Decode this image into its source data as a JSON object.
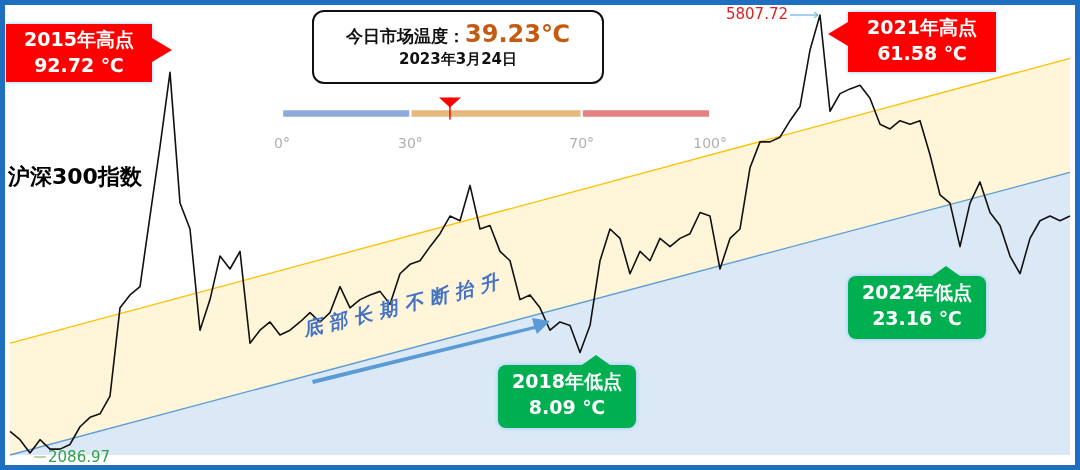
{
  "chart_data": [
    {
      "type": "line",
      "tick_labels": false,
      "categories": [
        null,
        null,
        null,
        null,
        null,
        null,
        null,
        null,
        null,
        null,
        null,
        null,
        null,
        null,
        null,
        null,
        null,
        null,
        null,
        null,
        null,
        null,
        null,
        null,
        null,
        null,
        null,
        null,
        null,
        null,
        null,
        null,
        null,
        null,
        null,
        null,
        null,
        null,
        null,
        null,
        null,
        null,
        null,
        null,
        null,
        null,
        null,
        null,
        null,
        null,
        null,
        null,
        null,
        null,
        null,
        null,
        null,
        null,
        null,
        null,
        null,
        null,
        null,
        null,
        null,
        null,
        null,
        null,
        null,
        null,
        null,
        null,
        null,
        null,
        null,
        null,
        null,
        null,
        null,
        null,
        null,
        null,
        null,
        null,
        null,
        null,
        null,
        null,
        null,
        null,
        null,
        null,
        null,
        null,
        null,
        null,
        null,
        null,
        null,
        null,
        null,
        null,
        null,
        null,
        null,
        null,
        null
      ],
      "series": [
        {
          "type": "area",
          "color": "#5b9bd5",
          "values": [
            2070,
            null,
            null,
            null,
            null,
            null,
            null,
            null,
            null,
            null,
            null,
            null,
            null,
            null,
            null,
            null,
            null,
            null,
            null,
            null,
            null,
            null,
            null,
            null,
            null,
            null,
            null,
            null,
            null,
            null,
            null,
            null,
            null,
            null,
            null,
            null,
            null,
            null,
            null,
            null,
            null,
            null,
            null,
            null,
            null,
            null,
            null,
            null,
            null,
            null,
            null,
            null,
            null,
            null,
            null,
            null,
            null,
            null,
            null,
            null,
            null,
            null,
            null,
            null,
            null,
            null,
            null,
            null,
            null,
            null,
            null,
            null,
            null,
            null,
            null,
            null,
            null,
            null,
            null,
            null,
            null,
            null,
            null,
            null,
            null,
            null,
            null,
            null,
            null,
            null,
            null,
            null,
            null,
            null,
            null,
            null,
            null,
            null,
            null,
            null,
            null,
            null,
            null,
            null,
            null,
            null,
            4470
          ]
        },
        {
          "type": "area",
          "color": "#ffc000",
          "values": [
            3020,
            null,
            null,
            null,
            null,
            null,
            null,
            null,
            null,
            null,
            null,
            null,
            null,
            null,
            null,
            null,
            null,
            null,
            null,
            null,
            null,
            null,
            null,
            null,
            null,
            null,
            null,
            null,
            null,
            null,
            null,
            null,
            null,
            null,
            null,
            null,
            null,
            null,
            null,
            null,
            null,
            null,
            null,
            null,
            null,
            null,
            null,
            null,
            null,
            null,
            null,
            null,
            null,
            null,
            null,
            null,
            null,
            null,
            null,
            null,
            null,
            null,
            null,
            null,
            null,
            null,
            null,
            null,
            null,
            null,
            null,
            null,
            null,
            null,
            null,
            null,
            null,
            null,
            null,
            null,
            null,
            null,
            null,
            null,
            null,
            null,
            null,
            null,
            null,
            null,
            null,
            null,
            null,
            null,
            null,
            null,
            null,
            null,
            null,
            null,
            null,
            null,
            null,
            null,
            null,
            null,
            5440
          ]
        },
        {
          "name": "沪深300指数",
          "color": "#111111",
          "values": [
            2270,
            2200,
            2086.97,
            2200,
            2120,
            2120,
            2160,
            2310,
            2390,
            2420,
            2570,
            3320,
            3430,
            3500,
            4100,
            4690,
            5320,
            4210,
            3990,
            3130,
            3390,
            3760,
            3650,
            3800,
            3020,
            3130,
            3200,
            3090,
            3130,
            3200,
            3280,
            3200,
            3280,
            3500,
            3320,
            3390,
            3430,
            3460,
            3350,
            3610,
            3690,
            3720,
            3840,
            3950,
            4100,
            4060,
            4360,
            3990,
            4020,
            3800,
            3720,
            3390,
            3430,
            3320,
            3130,
            3200,
            3170,
            2940,
            3170,
            3720,
            3990,
            3910,
            3610,
            3800,
            3720,
            3910,
            3840,
            3910,
            3950,
            4130,
            4100,
            3650,
            3910,
            3990,
            4510,
            4730,
            4730,
            4770,
            4910,
            5030,
            5510,
            5807.72,
            4990,
            5140,
            5180,
            5210,
            5100,
            4880,
            4840,
            4910,
            4880,
            4910,
            4620,
            4280,
            4210,
            3840,
            4210,
            4390,
            4130,
            4020,
            3760,
            3610,
            3910,
            4060,
            4100,
            4060,
            4100
          ],
          "value_labels": [
            null,
            null,
            "2086.97",
            null,
            null,
            null,
            null,
            null,
            null,
            null,
            null,
            null,
            null,
            null,
            null,
            null,
            null,
            null,
            null,
            null,
            null,
            null,
            null,
            null,
            null,
            null,
            null,
            null,
            null,
            null,
            null,
            null,
            null,
            null,
            null,
            null,
            null,
            null,
            null,
            null,
            null,
            null,
            null,
            null,
            null,
            null,
            null,
            null,
            null,
            null,
            null,
            null,
            null,
            null,
            null,
            null,
            null,
            null,
            null,
            null,
            null,
            null,
            null,
            null,
            null,
            null,
            null,
            null,
            null,
            null,
            null,
            null,
            null,
            null,
            null,
            null,
            null,
            null,
            null,
            null,
            null,
            "5807.72",
            null,
            null,
            null,
            null,
            null,
            null,
            null,
            null,
            null,
            null,
            null,
            null,
            null,
            null,
            null,
            null,
            null,
            null,
            null,
            null,
            null,
            null,
            null,
            null,
            null
          ]
        }
      ],
      "annotations": [
        "2015年高点\n92.72 ℃",
        "2021年高点\n61.58 ℃",
        "2018年低点\n8.09 ℃",
        "2022年低点\n23.16 ℃",
        "底部长期不断抬升"
      ]
    },
    {
      "type": "bar",
      "orientation": "horizontal",
      "stacked": true,
      "title": "今日市场温度：",
      "subtitle": "2023年3月24日",
      "categories": [
        null
      ],
      "series": [
        {
          "color": "#8eaadb",
          "values": [
            30
          ]
        },
        {
          "color": "#e6b87c",
          "values": [
            40
          ]
        },
        {
          "color": "#e58080",
          "values": [
            30
          ]
        }
      ],
      "xlim": [
        0,
        100
      ],
      "xticks": [
        {
          "value": 0,
          "label": "0°"
        },
        {
          "value": 30,
          "label": "30°"
        },
        {
          "value": 70,
          "label": "70°"
        },
        {
          "value": 100,
          "label": "100°"
        }
      ],
      "ref_lines": [
        {
          "axis": "x",
          "value": 39.23,
          "label": "39.23℃",
          "color": "#ff0000"
        }
      ]
    }
  ]
}
